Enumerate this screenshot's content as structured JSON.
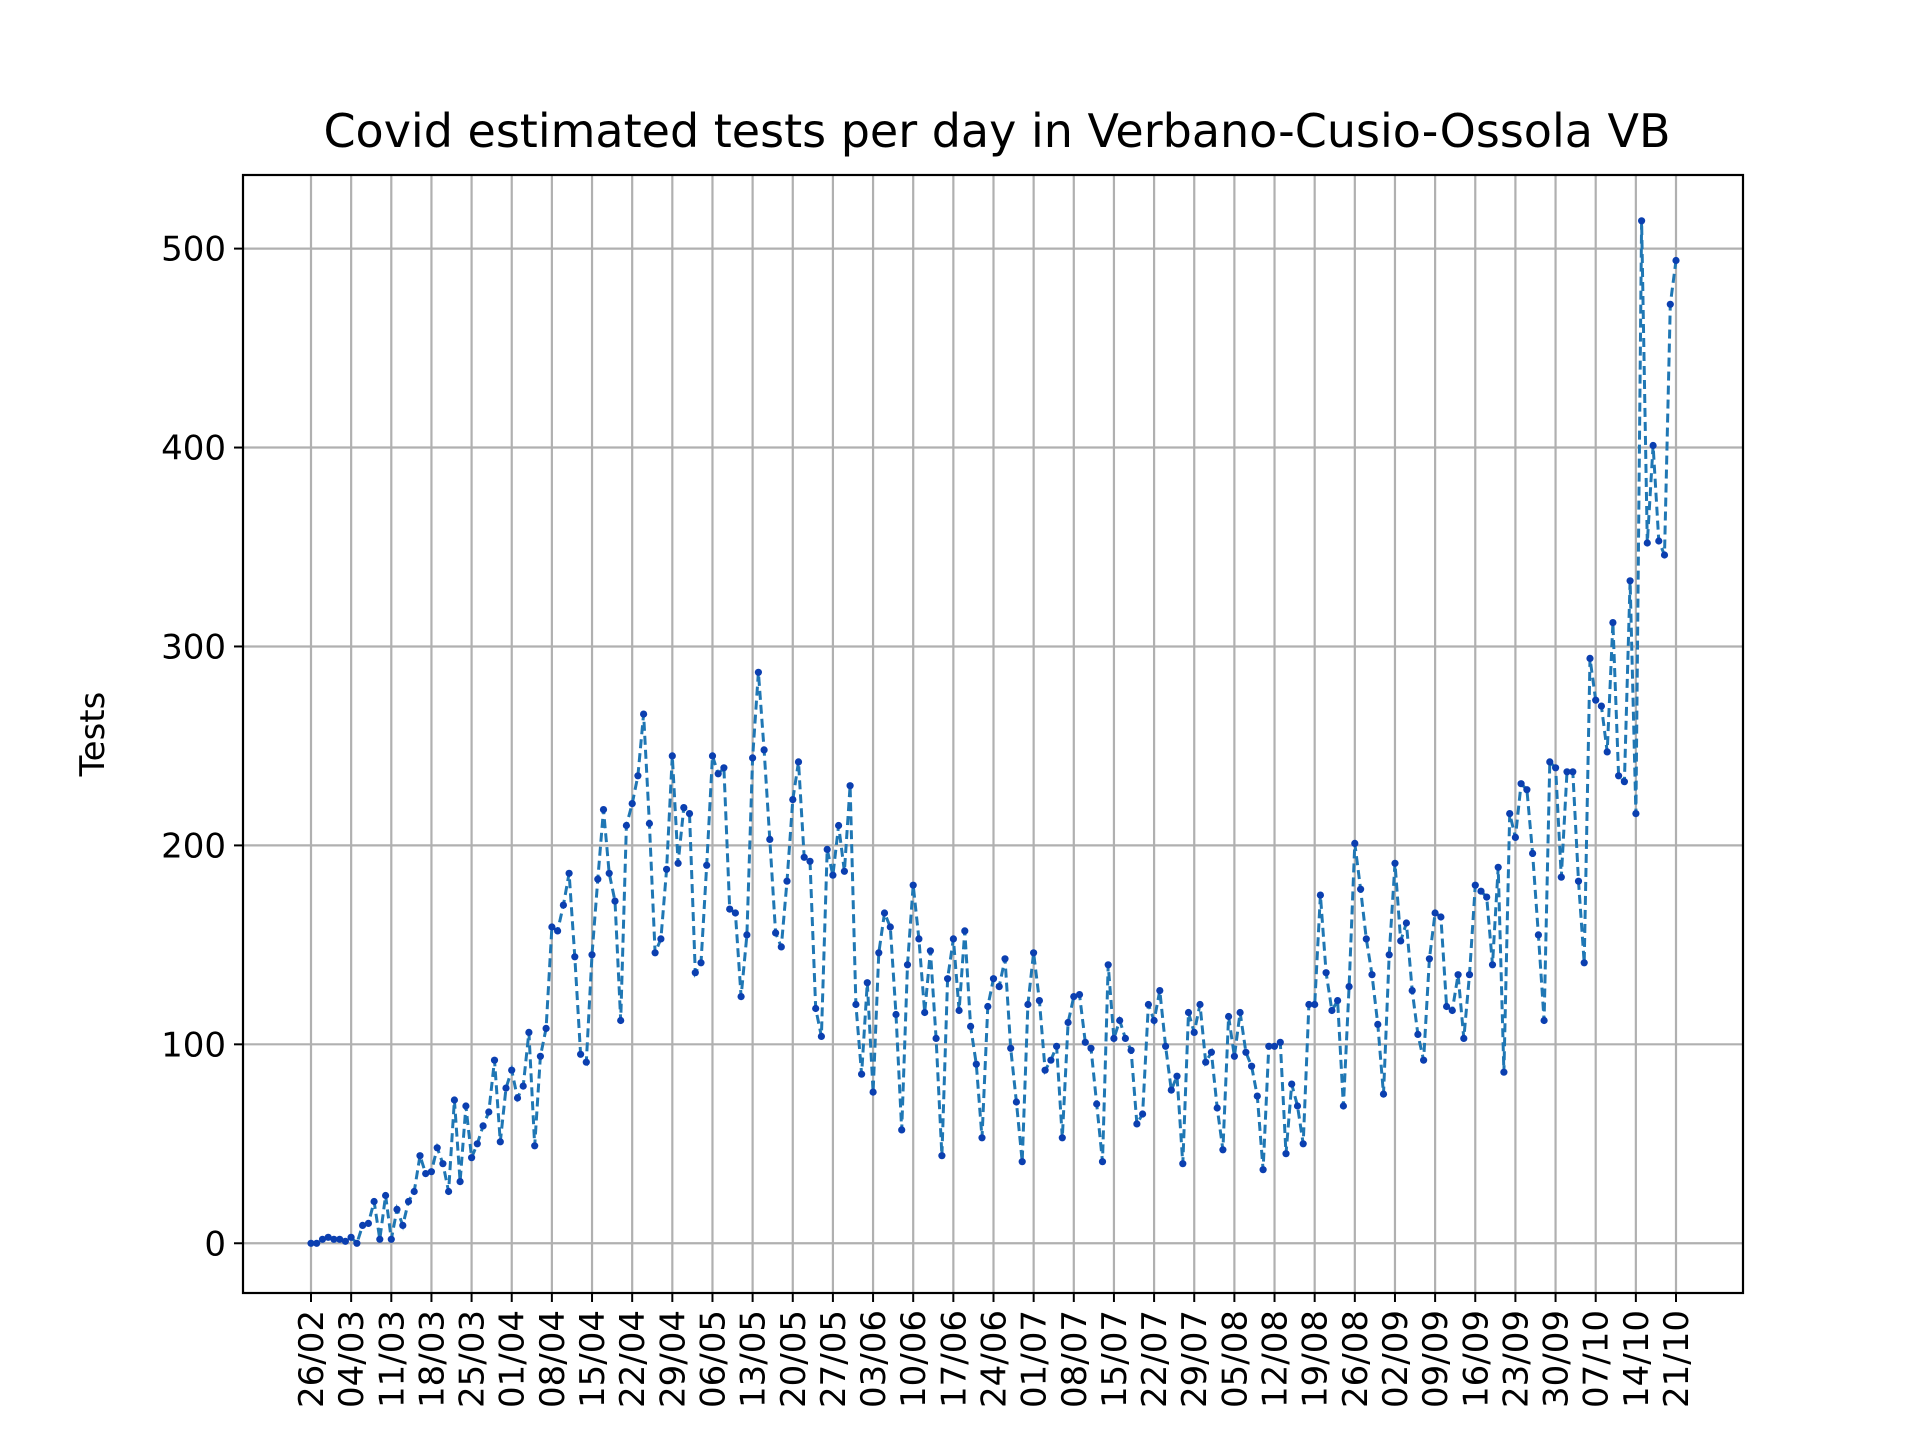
{
  "chart_data": {
    "type": "line",
    "title": "Covid estimated tests per day in Verbano-Cusio-Ossola VB",
    "xlabel": "",
    "ylabel": "Tests",
    "ylim": [
      -25,
      537
    ],
    "yticks": [
      0,
      100,
      200,
      300,
      400,
      500
    ],
    "grid": true,
    "legend": "none",
    "line_color": "#1f77b4",
    "marker_color": "#0b3fb0",
    "x_tick_labels": [
      "26/02",
      "04/03",
      "11/03",
      "18/03",
      "25/03",
      "01/04",
      "08/04",
      "15/04",
      "22/04",
      "29/04",
      "06/05",
      "13/05",
      "20/05",
      "27/05",
      "03/06",
      "10/06",
      "17/06",
      "24/06",
      "01/07",
      "08/07",
      "15/07",
      "22/07",
      "29/07",
      "05/08",
      "12/08",
      "19/08",
      "26/08",
      "02/09",
      "09/09",
      "16/09",
      "23/09",
      "30/09",
      "07/10",
      "14/10",
      "21/10"
    ],
    "x_start": "2020-02-26",
    "series": [
      {
        "values": [
          0,
          0,
          2,
          3,
          2,
          2,
          1,
          3,
          0,
          9,
          10,
          21,
          2,
          24,
          2,
          17,
          9,
          21,
          26,
          44,
          35,
          36,
          48,
          40,
          26,
          72,
          31,
          69,
          43,
          50,
          59,
          66,
          92,
          51,
          78,
          87,
          73,
          79,
          106,
          49,
          94,
          108,
          159,
          157,
          170,
          186,
          144,
          95,
          91,
          145,
          183,
          218,
          186,
          172,
          112,
          210,
          221,
          235,
          266,
          211,
          146,
          153,
          188,
          245,
          191,
          219,
          216,
          136,
          141,
          190,
          245,
          236,
          239,
          168,
          166,
          124,
          155,
          244,
          287,
          248,
          203,
          156,
          149,
          182,
          223,
          242,
          194,
          192,
          118,
          104,
          198,
          185,
          210,
          187,
          230,
          120,
          85,
          131,
          76,
          146,
          166,
          159,
          115,
          57,
          140,
          180,
          153,
          116,
          147,
          103,
          44,
          133,
          153,
          117,
          157,
          109,
          90,
          53,
          119,
          133,
          129,
          143,
          98,
          71,
          41,
          120,
          146,
          122,
          87,
          92,
          99,
          53,
          111,
          124,
          125,
          101,
          98,
          70,
          41,
          140,
          103,
          112,
          103,
          97,
          60,
          65,
          120,
          112,
          127,
          99,
          77,
          84,
          40,
          116,
          106,
          120,
          91,
          96,
          68,
          47,
          114,
          94,
          116,
          96,
          89,
          74,
          37,
          99,
          99,
          101,
          45,
          80,
          69,
          50,
          120,
          120,
          175,
          136,
          117,
          122,
          69,
          129,
          201,
          178,
          153,
          135,
          110,
          75,
          145,
          191,
          152,
          161,
          127,
          105,
          92,
          143,
          166,
          164,
          119,
          117,
          135,
          103,
          135,
          180,
          177,
          174,
          140,
          189,
          86,
          216,
          204,
          231,
          228,
          196,
          155,
          112,
          242,
          239,
          184,
          237,
          237,
          182,
          141,
          294,
          273,
          270,
          247,
          312,
          235,
          232,
          333,
          216,
          514,
          352,
          401,
          353,
          346,
          472,
          494
        ]
      }
    ]
  }
}
